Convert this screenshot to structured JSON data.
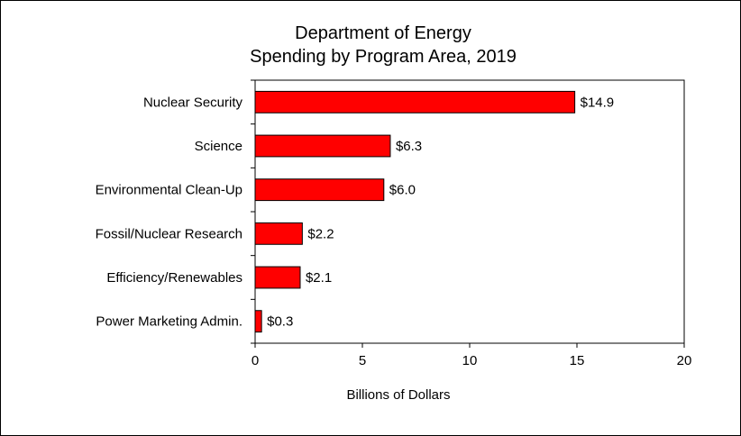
{
  "chart_data": {
    "type": "bar",
    "orientation": "horizontal",
    "title": [
      "Department of Energy",
      "Spending by Program Area, 2019"
    ],
    "categories": [
      "Nuclear Security",
      "Science",
      "Environmental Clean-Up",
      "Fossil/Nuclear Research",
      "Efficiency/Renewables",
      "Power Marketing Admin."
    ],
    "values": [
      14.9,
      6.3,
      6.0,
      2.2,
      2.1,
      0.3
    ],
    "data_labels": [
      "$14.9",
      "$6.3",
      "$6.0",
      "$2.2",
      "$2.1",
      "$0.3"
    ],
    "xlabel": "Billions of Dollars",
    "ylabel": "",
    "xlim": [
      0,
      20
    ],
    "xticks": [
      0,
      5,
      10,
      15,
      20
    ],
    "grid": false,
    "legend": "none",
    "bar_color": "#ff0000",
    "bar_edge_color": "#000000"
  }
}
